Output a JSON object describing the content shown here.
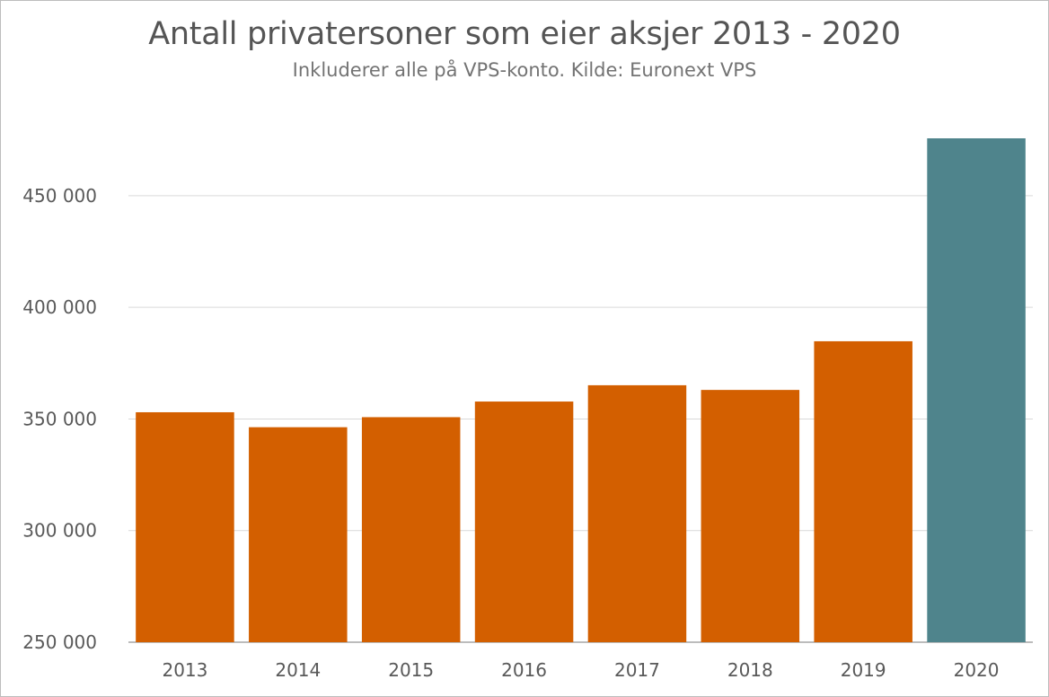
{
  "chart_data": {
    "type": "bar",
    "title": "Antall privatersoner som eier aksjer 2013 - 2020",
    "subtitle": "Inkluderer alle på VPS-konto. Kilde: Euronext VPS",
    "xlabel": "",
    "ylabel": "",
    "categories": [
      "2013",
      "2014",
      "2015",
      "2016",
      "2017",
      "2018",
      "2019",
      "2020"
    ],
    "values": [
      353000,
      346300,
      350800,
      357800,
      365100,
      363000,
      384800,
      475700
    ],
    "ylim": [
      250000,
      475700
    ],
    "yticks": [
      250000,
      300000,
      350000,
      400000,
      450000
    ],
    "ytick_labels": [
      "250 000",
      "300 000",
      "350 000",
      "400 000",
      "450 000"
    ],
    "grid": true,
    "legend": "none",
    "colors": [
      "#d35f00",
      "#d35f00",
      "#d35f00",
      "#d35f00",
      "#d35f00",
      "#d35f00",
      "#d35f00",
      "#4f848c"
    ]
  }
}
